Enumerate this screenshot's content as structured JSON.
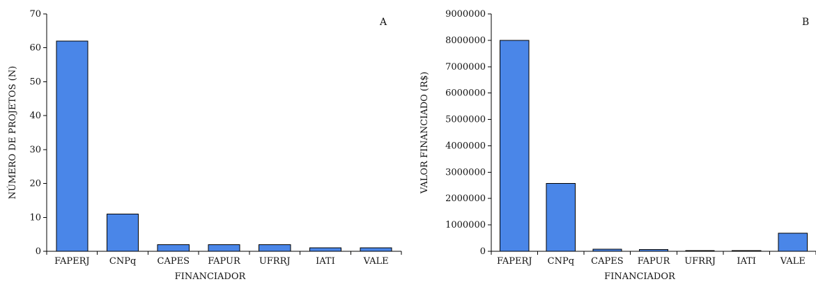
{
  "chart_data": [
    {
      "type": "bar",
      "panel_label": "A",
      "categories": [
        "FAPERJ",
        "CNPq",
        "CAPES",
        "FAPUR",
        "UFRRJ",
        "IATI",
        "VALE"
      ],
      "values": [
        62,
        11,
        2,
        2,
        2,
        1,
        1
      ],
      "xlabel": "FINANCIADOR",
      "ylabel": "NÚMERO DE PROJETOS (N)",
      "ylim": [
        0,
        70
      ],
      "yticks": [
        0,
        10,
        20,
        30,
        40,
        50,
        60,
        70
      ],
      "ytick_labels": [
        "0",
        "10",
        "20",
        "30",
        "40",
        "50",
        "60",
        "70"
      ],
      "grid": false,
      "bar_color": "#4a86e8"
    },
    {
      "type": "bar",
      "panel_label": "B",
      "categories": [
        "FAPERJ",
        "CNPq",
        "CAPES",
        "FAPUR",
        "UFRRJ",
        "IATI",
        "VALE"
      ],
      "values": [
        8000000,
        2570000,
        80000,
        60000,
        15000,
        20000,
        690000
      ],
      "xlabel": "FINANCIADOR",
      "ylabel": "VALOR FINANCIADO (R$)",
      "ylim": [
        0,
        9000000
      ],
      "yticks": [
        0,
        1000000,
        2000000,
        3000000,
        4000000,
        5000000,
        6000000,
        7000000,
        8000000,
        9000000
      ],
      "ytick_labels": [
        "0",
        "1000000",
        "2000000",
        "3000000",
        "4000000",
        "5000000",
        "6000000",
        "7000000",
        "8000000",
        "9000000"
      ],
      "grid": false,
      "bar_color": "#4a86e8"
    }
  ]
}
